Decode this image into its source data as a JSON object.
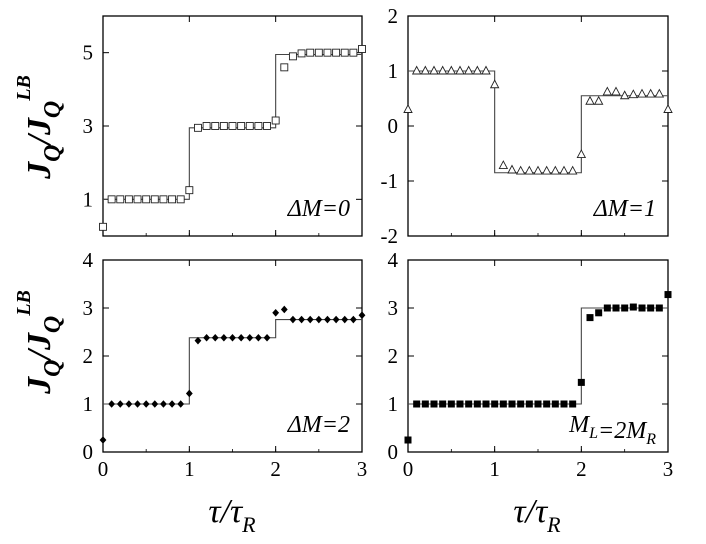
{
  "ylabel": "J_Q/J_Q^LB",
  "xlabel": "τ/τ_R",
  "chart_data": [
    {
      "type": "scatter",
      "panel": "top-left",
      "annotation": "ΔM=0",
      "marker": "open-square",
      "xlim": [
        0,
        3
      ],
      "ylim": [
        0,
        6
      ],
      "yticks": [
        1,
        3,
        5
      ],
      "xticks": [
        0,
        1,
        2,
        3
      ],
      "series": [
        {
          "role": "analytic",
          "steps": [
            {
              "x0": 0,
              "x1": 1,
              "y": 1.0
            },
            {
              "x0": 1,
              "x1": 2,
              "y": 2.95
            },
            {
              "x0": 2,
              "x1": 3,
              "y": 4.95
            }
          ]
        },
        {
          "role": "numeric",
          "x": [
            0,
            0.1,
            0.2,
            0.3,
            0.4,
            0.5,
            0.6,
            0.7,
            0.8,
            0.9,
            1.0,
            1.1,
            1.2,
            1.3,
            1.4,
            1.5,
            1.6,
            1.7,
            1.8,
            1.9,
            2.0,
            2.1,
            2.2,
            2.3,
            2.4,
            2.5,
            2.6,
            2.7,
            2.8,
            2.9,
            3.0
          ],
          "y": [
            0.25,
            1.0,
            1.0,
            1.0,
            1.0,
            1.0,
            1.0,
            1.0,
            1.0,
            1.0,
            1.25,
            2.95,
            3.0,
            3.0,
            3.0,
            3.0,
            3.0,
            3.0,
            3.0,
            3.0,
            3.15,
            4.6,
            4.9,
            4.98,
            5.0,
            5.0,
            5.0,
            5.0,
            5.0,
            5.0,
            5.1
          ]
        }
      ]
    },
    {
      "type": "scatter",
      "panel": "top-right",
      "annotation": "ΔM=1",
      "marker": "open-triangle",
      "xlim": [
        0,
        3
      ],
      "ylim": [
        -2,
        2
      ],
      "yticks": [
        -2,
        -1,
        0,
        1,
        2
      ],
      "xticks": [
        0,
        1,
        2,
        3
      ],
      "series": [
        {
          "role": "analytic",
          "steps": [
            {
              "x0": 0,
              "x1": 1,
              "y": 1.0
            },
            {
              "x0": 1,
              "x1": 2,
              "y": -0.85
            },
            {
              "x0": 2,
              "x1": 3,
              "y": 0.55
            }
          ]
        },
        {
          "role": "numeric",
          "x": [
            0,
            0.1,
            0.2,
            0.3,
            0.4,
            0.5,
            0.6,
            0.7,
            0.8,
            0.9,
            1.0,
            1.1,
            1.2,
            1.3,
            1.4,
            1.5,
            1.6,
            1.7,
            1.8,
            1.9,
            2.0,
            2.1,
            2.2,
            2.3,
            2.4,
            2.5,
            2.6,
            2.7,
            2.8,
            2.9,
            3.0
          ],
          "y": [
            0.3,
            1.0,
            1.0,
            1.0,
            1.0,
            1.0,
            1.0,
            1.0,
            1.0,
            1.0,
            0.75,
            -0.72,
            -0.8,
            -0.82,
            -0.82,
            -0.82,
            -0.82,
            -0.82,
            -0.82,
            -0.82,
            -0.52,
            0.45,
            0.45,
            0.62,
            0.62,
            0.55,
            0.57,
            0.58,
            0.58,
            0.58,
            0.3
          ]
        }
      ]
    },
    {
      "type": "scatter",
      "panel": "bottom-left",
      "annotation": "ΔM=2",
      "marker": "filled-diamond",
      "xlim": [
        0,
        3
      ],
      "ylim": [
        0,
        4
      ],
      "yticks": [
        0,
        1,
        2,
        3,
        4
      ],
      "xticks": [
        0,
        1,
        2,
        3
      ],
      "series": [
        {
          "role": "analytic",
          "steps": [
            {
              "x0": 0,
              "x1": 1,
              "y": 1.0
            },
            {
              "x0": 1,
              "x1": 2,
              "y": 2.38
            },
            {
              "x0": 2,
              "x1": 3,
              "y": 2.76
            }
          ]
        },
        {
          "role": "numeric",
          "x": [
            0,
            0.1,
            0.2,
            0.3,
            0.4,
            0.5,
            0.6,
            0.7,
            0.8,
            0.9,
            1.0,
            1.1,
            1.2,
            1.3,
            1.4,
            1.5,
            1.6,
            1.7,
            1.8,
            1.9,
            2.0,
            2.1,
            2.2,
            2.3,
            2.4,
            2.5,
            2.6,
            2.7,
            2.8,
            2.9,
            3.0
          ],
          "y": [
            0.25,
            1.0,
            1.0,
            1.0,
            1.0,
            1.0,
            1.0,
            1.0,
            1.0,
            1.0,
            1.22,
            2.32,
            2.38,
            2.38,
            2.38,
            2.38,
            2.38,
            2.38,
            2.38,
            2.38,
            2.9,
            2.97,
            2.76,
            2.76,
            2.76,
            2.76,
            2.76,
            2.76,
            2.76,
            2.76,
            2.85
          ]
        }
      ]
    },
    {
      "type": "scatter",
      "panel": "bottom-right",
      "annotation": "M_L=2M_R",
      "marker": "filled-square",
      "xlim": [
        0,
        3
      ],
      "ylim": [
        0,
        4
      ],
      "yticks": [
        0,
        1,
        2,
        3,
        4
      ],
      "xticks": [
        0,
        1,
        2,
        3
      ],
      "series": [
        {
          "role": "analytic",
          "steps": [
            {
              "x0": 0,
              "x1": 2,
              "y": 1.0
            },
            {
              "x0": 2,
              "x1": 3,
              "y": 3.0
            }
          ]
        },
        {
          "role": "numeric",
          "x": [
            0,
            0.1,
            0.2,
            0.3,
            0.4,
            0.5,
            0.6,
            0.7,
            0.8,
            0.9,
            1.0,
            1.1,
            1.2,
            1.3,
            1.4,
            1.5,
            1.6,
            1.7,
            1.8,
            1.9,
            2.0,
            2.1,
            2.2,
            2.3,
            2.4,
            2.5,
            2.6,
            2.7,
            2.8,
            2.9,
            3.0
          ],
          "y": [
            0.25,
            1.0,
            1.0,
            1.0,
            1.0,
            1.0,
            1.0,
            1.0,
            1.0,
            1.0,
            1.0,
            1.0,
            1.0,
            1.0,
            1.0,
            1.0,
            1.0,
            1.0,
            1.0,
            1.0,
            1.45,
            2.8,
            2.9,
            3.0,
            3.0,
            3.0,
            3.02,
            3.0,
            3.0,
            3.0,
            3.28
          ]
        }
      ]
    }
  ]
}
